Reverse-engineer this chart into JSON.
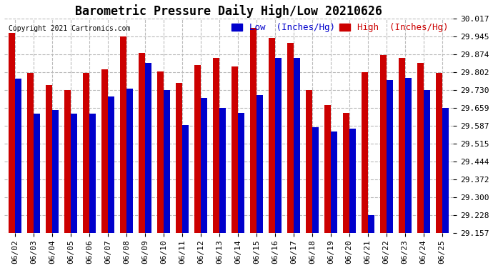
{
  "title": "Barometric Pressure Daily High/Low 20210626",
  "copyright": "Copyright 2021 Cartronics.com",
  "legend_low": "Low  (Inches/Hg)",
  "legend_high": "High  (Inches/Hg)",
  "dates": [
    "06/02",
    "06/03",
    "06/04",
    "06/05",
    "06/06",
    "06/07",
    "06/08",
    "06/09",
    "06/10",
    "06/11",
    "06/12",
    "06/13",
    "06/14",
    "06/15",
    "06/16",
    "06/17",
    "06/18",
    "06/19",
    "06/20",
    "06/21",
    "06/22",
    "06/23",
    "06/24",
    "06/25"
  ],
  "low_values": [
    29.775,
    29.635,
    29.65,
    29.635,
    29.635,
    29.705,
    29.735,
    29.84,
    29.73,
    29.59,
    29.7,
    29.66,
    29.64,
    29.71,
    29.86,
    29.86,
    29.58,
    29.565,
    29.575,
    29.228,
    29.77,
    29.78,
    29.73,
    29.659
  ],
  "high_values": [
    29.96,
    29.8,
    29.75,
    29.73,
    29.8,
    29.815,
    29.945,
    29.88,
    29.805,
    29.76,
    29.83,
    29.86,
    29.825,
    29.98,
    29.94,
    29.92,
    29.73,
    29.67,
    29.64,
    29.802,
    29.87,
    29.86,
    29.84,
    29.8
  ],
  "ymin": 29.157,
  "ymax": 30.017,
  "yticks": [
    29.157,
    29.228,
    29.3,
    29.372,
    29.444,
    29.515,
    29.587,
    29.659,
    29.73,
    29.802,
    29.874,
    29.945,
    30.017
  ],
  "low_color": "#0000cc",
  "high_color": "#cc0000",
  "background_color": "#ffffff",
  "grid_color": "#bbbbbb",
  "title_fontsize": 12,
  "tick_fontsize": 8,
  "legend_fontsize": 9,
  "bar_width": 0.35
}
